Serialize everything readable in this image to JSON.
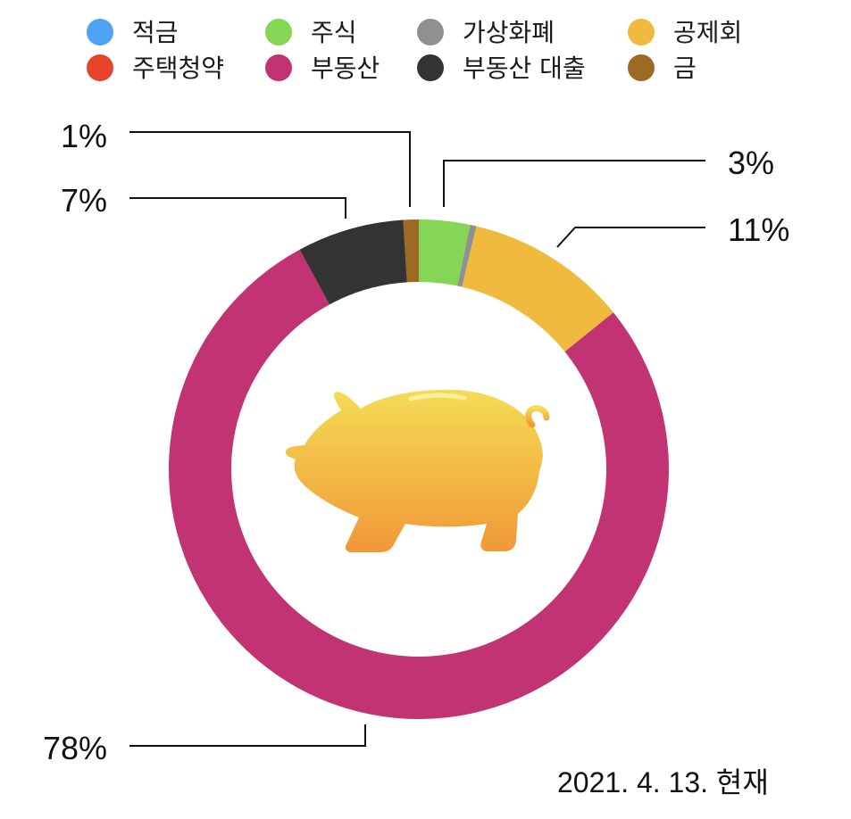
{
  "chart_data": {
    "type": "pie",
    "donut": true,
    "legend_position": "top",
    "categories": [
      "적금",
      "주택청약",
      "주식",
      "부동산",
      "가상화폐",
      "부동산 대출",
      "공제회",
      "금"
    ],
    "colors": [
      "#4ea3f5",
      "#e8432d",
      "#85d654",
      "#c23373",
      "#909090",
      "#333333",
      "#efba3d",
      "#9c6a22"
    ],
    "order": [
      "금",
      "주식",
      "가상화폐",
      "공제회",
      "부동산",
      "부동산 대출"
    ],
    "values": {
      "적금": 0,
      "주택청약": 0,
      "주식": 3.3,
      "부동산": 77.9,
      "가상화폐": 0.4,
      "부동산 대출": 6.9,
      "공제회": 10.5,
      "금": 1.0
    },
    "labels": [
      {
        "series": "금",
        "text": "1%"
      },
      {
        "series": "주식",
        "text": "3%"
      },
      {
        "series": "공제회",
        "text": "11%"
      },
      {
        "series": "부동산 대출",
        "text": "7%"
      },
      {
        "series": "부동산",
        "text": "78%"
      }
    ]
  },
  "center_icon": "piggy-bank-icon",
  "date_label": "2021. 4. 13. 현재"
}
